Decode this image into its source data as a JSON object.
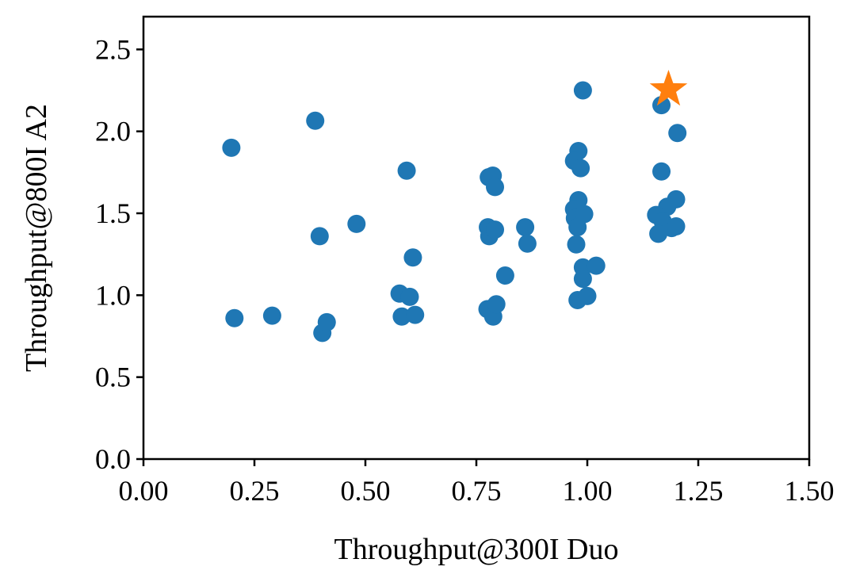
{
  "chart_data": {
    "type": "scatter",
    "xlabel": "Throughput@300I Duo",
    "ylabel": "Throughput@800I A2",
    "xlim": [
      0.0,
      1.5
    ],
    "ylim": [
      0.0,
      2.7
    ],
    "xticks": [
      "0.00",
      "0.25",
      "0.50",
      "0.75",
      "1.00",
      "1.25",
      "1.50"
    ],
    "xtick_values": [
      0.0,
      0.25,
      0.5,
      0.75,
      1.0,
      1.25,
      1.5
    ],
    "yticks": [
      "0.0",
      "0.5",
      "1.0",
      "1.5",
      "2.0",
      "2.5"
    ],
    "ytick_values": [
      0.0,
      0.5,
      1.0,
      1.5,
      2.0,
      2.5
    ],
    "grid": false,
    "colors": {
      "points": "#1f77b4",
      "highlight": "#ff7f0e"
    },
    "series": [
      {
        "marker": "circle",
        "color": "#1f77b4",
        "points": [
          [
            0.198,
            1.9
          ],
          [
            0.205,
            0.86
          ],
          [
            0.29,
            0.875
          ],
          [
            0.387,
            2.065
          ],
          [
            0.397,
            1.36
          ],
          [
            0.403,
            0.77
          ],
          [
            0.413,
            0.835
          ],
          [
            0.48,
            1.435
          ],
          [
            0.577,
            1.01
          ],
          [
            0.582,
            0.87
          ],
          [
            0.593,
            1.76
          ],
          [
            0.6,
            0.99
          ],
          [
            0.607,
            1.23
          ],
          [
            0.612,
            0.88
          ],
          [
            0.778,
            1.72
          ],
          [
            0.787,
            1.73
          ],
          [
            0.776,
            1.415
          ],
          [
            0.779,
            1.36
          ],
          [
            0.792,
            1.4
          ],
          [
            0.792,
            1.66
          ],
          [
            0.775,
            0.915
          ],
          [
            0.788,
            0.87
          ],
          [
            0.795,
            0.945
          ],
          [
            0.815,
            1.12
          ],
          [
            0.86,
            1.415
          ],
          [
            0.865,
            1.315
          ],
          [
            0.99,
            2.25
          ],
          [
            0.98,
            1.88
          ],
          [
            0.97,
            1.82
          ],
          [
            0.985,
            1.775
          ],
          [
            0.98,
            1.58
          ],
          [
            0.97,
            1.525
          ],
          [
            0.972,
            1.47
          ],
          [
            0.978,
            1.415
          ],
          [
            0.993,
            1.495
          ],
          [
            0.975,
            1.31
          ],
          [
            0.99,
            1.17
          ],
          [
            1.02,
            1.18
          ],
          [
            0.99,
            1.1
          ],
          [
            0.978,
            0.97
          ],
          [
            1.0,
            0.995
          ],
          [
            1.167,
            2.16
          ],
          [
            1.203,
            1.99
          ],
          [
            1.167,
            1.755
          ],
          [
            1.2,
            1.585
          ],
          [
            1.18,
            1.54
          ],
          [
            1.155,
            1.49
          ],
          [
            1.17,
            1.45
          ],
          [
            1.19,
            1.41
          ],
          [
            1.2,
            1.42
          ],
          [
            1.16,
            1.375
          ]
        ]
      },
      {
        "marker": "star",
        "color": "#ff7f0e",
        "points": [
          [
            1.183,
            2.255
          ]
        ]
      }
    ]
  }
}
